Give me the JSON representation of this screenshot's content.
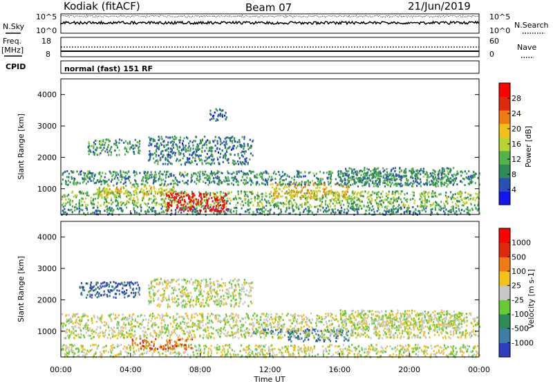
{
  "header": {
    "station": "Kodiak (fitACF)",
    "beam": "Beam 07",
    "date": "21/Jun/2019"
  },
  "top_panels": {
    "nsky_label": "N.Sky",
    "nsky_ticks": [
      "10^5",
      "10^0"
    ],
    "nsearch_label": "N.Search",
    "nsearch_ticks": [
      "10^5",
      "10^0"
    ],
    "freq_label_1": "Freq.",
    "freq_label_2": "[MHz]",
    "freq_ticks": [
      "18",
      "8"
    ],
    "nave_label": "Nave",
    "nave_ticks": [
      "60",
      "0"
    ],
    "cpid_label": "CPID",
    "cpid_text": "normal (fast) 151 RF"
  },
  "chart_data": [
    {
      "type": "heatmap",
      "name": "power",
      "ylabel": "Slant Range [km]",
      "ylim": [
        180,
        4500
      ],
      "yticks": [
        "1000",
        "2000",
        "3000",
        "4000"
      ],
      "colorbar_label": "Power [dB]",
      "colorbar_ticks": [
        "28",
        "24",
        "20",
        "16",
        "12",
        "8",
        "4"
      ],
      "colors": [
        "#1414f0",
        "#2b4fb8",
        "#2e8b57",
        "#55b24a",
        "#b9d430",
        "#f2c21b",
        "#f07b14",
        "#e02a10",
        "#ff0000"
      ],
      "scatter_regions": [
        {
          "t0": 0.0,
          "t1": 24.0,
          "r0": 200,
          "r1": 450,
          "level": 0.28
        },
        {
          "t0": 0.0,
          "t1": 24.0,
          "r0": 450,
          "r1": 950,
          "level": 0.42
        },
        {
          "t0": 6.0,
          "t1": 9.5,
          "r0": 300,
          "r1": 900,
          "level": 0.92
        },
        {
          "t0": 2.0,
          "t1": 6.5,
          "r0": 800,
          "r1": 1150,
          "level": 0.55
        },
        {
          "t0": 12.0,
          "t1": 16.5,
          "r0": 700,
          "r1": 1200,
          "level": 0.6
        },
        {
          "t0": 0.0,
          "t1": 24.0,
          "r0": 1150,
          "r1": 1600,
          "level": 0.3
        },
        {
          "t0": 1.5,
          "t1": 4.5,
          "r0": 2100,
          "r1": 2600,
          "level": 0.32
        },
        {
          "t0": 5.0,
          "t1": 11.0,
          "r0": 1800,
          "r1": 2700,
          "level": 0.25
        },
        {
          "t0": 8.5,
          "t1": 9.5,
          "r0": 3200,
          "r1": 3600,
          "level": 0.2
        },
        {
          "t0": 16.0,
          "t1": 22.5,
          "r0": 1100,
          "r1": 1700,
          "level": 0.3
        }
      ]
    },
    {
      "type": "heatmap",
      "name": "velocity",
      "ylabel": "Slant Range [km]",
      "ylim": [
        180,
        4500
      ],
      "yticks": [
        "1000",
        "2000",
        "3000",
        "4000"
      ],
      "xlabel": "Time UT",
      "xticks": [
        "00:00",
        "04:00",
        "08:00",
        "12:00",
        "16:00",
        "20:00",
        "00:00"
      ],
      "colorbar_label": "Velocity [m s-1]",
      "colorbar_ticks": [
        "1000",
        "500",
        "100",
        "25",
        "-25",
        "-100",
        "-500",
        "-1000"
      ],
      "colors": [
        "#2b3fc0",
        "#3d7fa8",
        "#2e8b57",
        "#66cc33",
        "#c8c8c8",
        "#f2c21b",
        "#f07b14",
        "#e02a10",
        "#ff0000"
      ],
      "scatter_regions": [
        {
          "t0": 0.0,
          "t1": 24.0,
          "r0": 200,
          "r1": 600,
          "level": 0.5
        },
        {
          "t0": 4.0,
          "t1": 7.5,
          "r0": 450,
          "r1": 800,
          "level": 0.78
        },
        {
          "t0": 13.0,
          "t1": 16.5,
          "r0": 700,
          "r1": 1100,
          "level": 0.16
        },
        {
          "t0": 11.0,
          "t1": 13.5,
          "r0": 950,
          "r1": 1100,
          "level": 0.05
        },
        {
          "t0": 0.0,
          "t1": 24.0,
          "r0": 800,
          "r1": 1600,
          "level": 0.5
        },
        {
          "t0": 1.0,
          "t1": 4.5,
          "r0": 2100,
          "r1": 2600,
          "level": 0.12
        },
        {
          "t0": 5.0,
          "t1": 11.0,
          "r0": 1800,
          "r1": 2700,
          "level": 0.5
        },
        {
          "t0": 16.0,
          "t1": 23.0,
          "r0": 1100,
          "r1": 1700,
          "level": 0.5
        }
      ]
    }
  ]
}
